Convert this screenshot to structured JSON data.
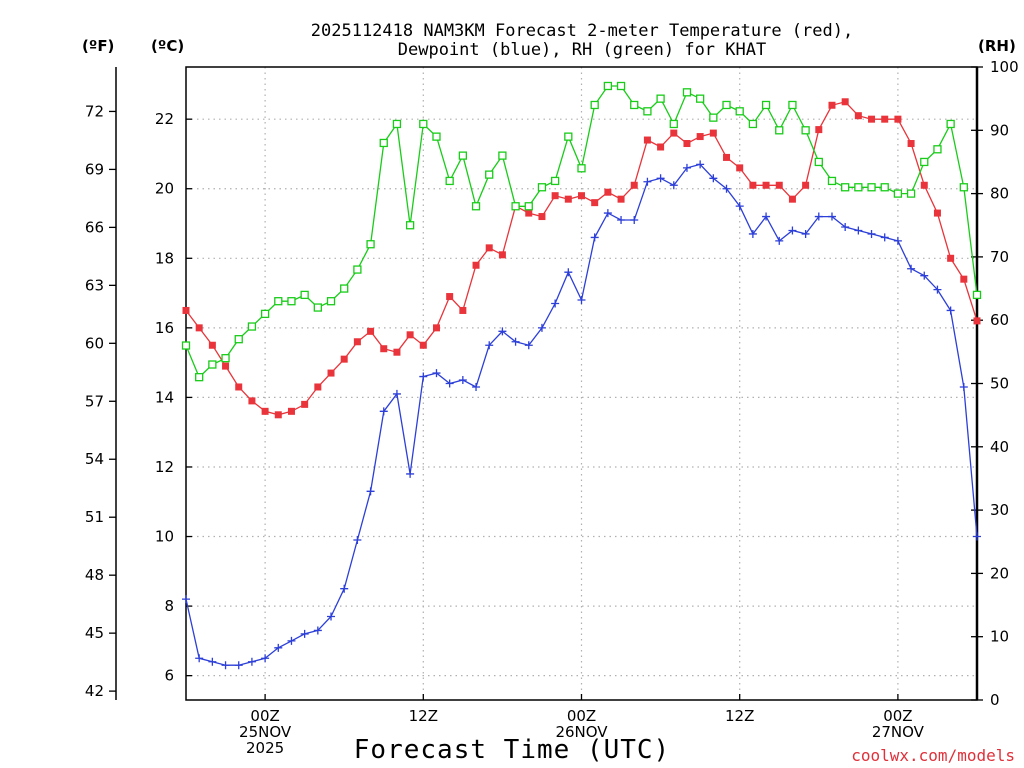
{
  "colors": {
    "temperature": "#e8343a",
    "dewpoint": "#2c3fd8",
    "rh": "#18cc18",
    "grid": "#b0b0b0",
    "credit": "#e0303a"
  },
  "chart_data": {
    "type": "line",
    "title_line1": "2025112418 NAM3KM Forecast 2-meter Temperature (red),",
    "title_line2": "Dewpoint (blue), RH (green) for KHAT",
    "xlabel": "Forecast Time (UTC)",
    "credit": "coolwx.com/models",
    "units": {
      "left_f": "(ºF)",
      "left_c": "(ºC)",
      "right": "(RH)"
    },
    "x_range_hours": [
      0,
      60
    ],
    "x_ticks": [
      {
        "hour": 6,
        "line1": "00Z",
        "line2": "25NOV",
        "line3": "2025"
      },
      {
        "hour": 18,
        "line1": "12Z",
        "line2": "",
        "line3": ""
      },
      {
        "hour": 30,
        "line1": "00Z",
        "line2": "26NOV",
        "line3": ""
      },
      {
        "hour": 42,
        "line1": "12Z",
        "line2": "",
        "line3": ""
      },
      {
        "hour": 54,
        "line1": "00Z",
        "line2": "27NOV",
        "line3": ""
      }
    ],
    "celsius_axis": {
      "min": 5.3,
      "max": 23.5,
      "ticks": [
        6,
        8,
        10,
        12,
        14,
        16,
        18,
        20,
        22
      ]
    },
    "fahrenheit_ticks": [
      42,
      45,
      48,
      51,
      54,
      57,
      60,
      63,
      66,
      69,
      72
    ],
    "rh_axis": {
      "min": 0,
      "max": 100,
      "ticks": [
        0,
        10,
        20,
        30,
        40,
        50,
        60,
        70,
        80,
        90,
        100
      ]
    },
    "hours": [
      0,
      1,
      2,
      3,
      4,
      5,
      6,
      7,
      8,
      9,
      10,
      11,
      12,
      13,
      14,
      15,
      16,
      17,
      18,
      19,
      20,
      21,
      22,
      23,
      24,
      25,
      26,
      27,
      28,
      29,
      30,
      31,
      32,
      33,
      34,
      35,
      36,
      37,
      38,
      39,
      40,
      41,
      42,
      43,
      44,
      45,
      46,
      47,
      48,
      49,
      50,
      51,
      52,
      53,
      54,
      55,
      56,
      57,
      58,
      59,
      60
    ],
    "series": [
      {
        "name": "Temperature (°C)",
        "axis": "celsius",
        "marker": "square",
        "values": [
          16.5,
          16.0,
          15.5,
          14.9,
          14.3,
          13.9,
          13.6,
          13.5,
          13.6,
          13.8,
          14.3,
          14.7,
          15.1,
          15.6,
          15.9,
          15.4,
          15.3,
          15.8,
          15.5,
          16.0,
          16.9,
          16.5,
          17.8,
          18.3,
          18.1,
          19.5,
          19.3,
          19.2,
          19.8,
          19.7,
          19.8,
          19.6,
          19.9,
          19.7,
          20.1,
          21.4,
          21.2,
          21.6,
          21.3,
          21.5,
          21.6,
          20.9,
          20.6,
          20.1,
          20.1,
          20.1,
          19.7,
          20.1,
          21.7,
          22.4,
          22.5,
          22.1,
          22.0,
          22.0,
          22.0,
          21.3,
          20.1,
          19.3,
          18.0,
          17.4,
          16.2
        ]
      },
      {
        "name": "Dewpoint (°C)",
        "axis": "celsius",
        "marker": "plus",
        "values": [
          8.2,
          6.5,
          6.4,
          6.3,
          6.3,
          6.4,
          6.5,
          6.8,
          7.0,
          7.2,
          7.3,
          7.7,
          8.5,
          9.9,
          11.3,
          13.6,
          14.1,
          11.8,
          14.6,
          14.7,
          14.4,
          14.5,
          14.3,
          15.5,
          15.9,
          15.6,
          15.5,
          16.0,
          16.7,
          17.6,
          16.8,
          18.6,
          19.3,
          19.1,
          19.1,
          20.2,
          20.3,
          20.1,
          20.6,
          20.7,
          20.3,
          20.0,
          19.5,
          18.7,
          19.2,
          18.5,
          18.8,
          18.7,
          19.2,
          19.2,
          18.9,
          18.8,
          18.7,
          18.6,
          18.5,
          17.7,
          17.5,
          17.1,
          16.5,
          14.3,
          10.0
        ]
      },
      {
        "name": "RH (%)",
        "axis": "rh",
        "marker": "open-square",
        "values": [
          56,
          51,
          53,
          54,
          57,
          59,
          61,
          63,
          63,
          64,
          62,
          63,
          65,
          68,
          72,
          88,
          91,
          75,
          91,
          89,
          82,
          86,
          78,
          83,
          86,
          78,
          78,
          81,
          82,
          89,
          84,
          94,
          97,
          97,
          94,
          93,
          95,
          91,
          96,
          95,
          92,
          94,
          93,
          91,
          94,
          90,
          94,
          90,
          85,
          82,
          81,
          81,
          81,
          81,
          80,
          80,
          85,
          87,
          91,
          81,
          64
        ]
      }
    ]
  }
}
